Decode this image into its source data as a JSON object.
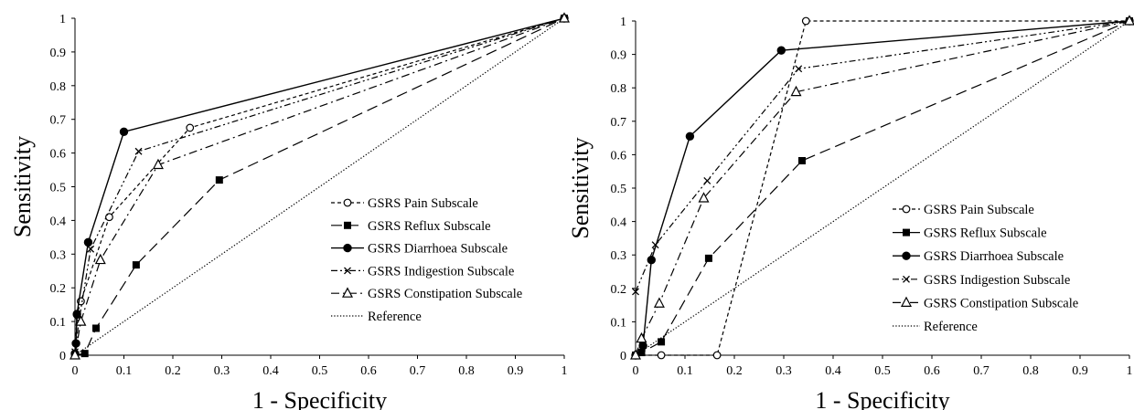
{
  "chart_data": [
    {
      "type": "line",
      "xlabel": "1 - Specificity",
      "ylabel": "Sensitivity",
      "xlim": [
        0,
        1
      ],
      "ylim": [
        0,
        1
      ],
      "xticks": [
        "0",
        "0.1",
        "0.2",
        "0.3",
        "0.4",
        "0.5",
        "0.6",
        "0.7",
        "0.8",
        "0.9",
        "1"
      ],
      "yticks": [
        "0",
        "0.1",
        "0.2",
        "0.3",
        "0.4",
        "0.5",
        "0.6",
        "0.7",
        "0.8",
        "0.9",
        "1"
      ],
      "grid": false,
      "legend_position": "bottom-right",
      "series": [
        {
          "name": "GSRS Pain Subscale",
          "style": "short-dash",
          "marker": "open-circle",
          "color": "#000000",
          "points": [
            [
              0,
              0
            ],
            [
              0.004,
              0.12
            ],
            [
              0.012,
              0.16
            ],
            [
              0.07,
              0.41
            ],
            [
              0.235,
              0.675
            ],
            [
              1,
              1
            ]
          ]
        },
        {
          "name": "GSRS Reflux Subscale",
          "style": "long-dash",
          "marker": "filled-square",
          "color": "#000000",
          "points": [
            [
              0,
              0
            ],
            [
              0.02,
              0.005
            ],
            [
              0.043,
              0.08
            ],
            [
              0.125,
              0.268
            ],
            [
              0.295,
              0.52
            ],
            [
              1,
              1
            ]
          ]
        },
        {
          "name": "GSRS Diarrhoea Subscale",
          "style": "solid",
          "marker": "filled-circle",
          "color": "#000000",
          "points": [
            [
              0,
              0.005
            ],
            [
              0.002,
              0.035
            ],
            [
              0.004,
              0.122
            ],
            [
              0.027,
              0.335
            ],
            [
              0.1,
              0.663
            ],
            [
              1,
              1
            ]
          ]
        },
        {
          "name": "GSRS Indigestion Subscale",
          "style": "dash-dot-dot",
          "marker": "x",
          "color": "#000000",
          "points": [
            [
              0,
              0.01
            ],
            [
              0.008,
              0.1
            ],
            [
              0.032,
              0.315
            ],
            [
              0.13,
              0.605
            ],
            [
              1,
              1
            ]
          ]
        },
        {
          "name": "GSRS Constipation Subscale",
          "style": "dash-dot",
          "marker": "open-triangle",
          "color": "#000000",
          "points": [
            [
              0,
              0
            ],
            [
              0.012,
              0.1
            ],
            [
              0.052,
              0.283
            ],
            [
              0.17,
              0.565
            ],
            [
              1,
              1
            ]
          ]
        },
        {
          "name": "Reference",
          "style": "dotted",
          "marker": "none",
          "color": "#000000",
          "points": [
            [
              0,
              0
            ],
            [
              1,
              1
            ]
          ]
        }
      ]
    },
    {
      "type": "line",
      "xlabel": "1 - Specificity",
      "ylabel": "Sensitivity",
      "xlim": [
        0,
        1
      ],
      "ylim": [
        0,
        1
      ],
      "xticks": [
        "0",
        "0.1",
        "0.2",
        "0.3",
        "0.4",
        "0.5",
        "0.6",
        "0.7",
        "0.8",
        "0.9",
        "1"
      ],
      "yticks": [
        "0",
        "0.1",
        "0.2",
        "0.3",
        "0.4",
        "0.5",
        "0.6",
        "0.7",
        "0.8",
        "0.9",
        "1"
      ],
      "grid": false,
      "legend_position": "bottom-right",
      "series": [
        {
          "name": "GSRS Pain Subscale",
          "style": "short-dash",
          "marker": "open-circle",
          "color": "#000000",
          "points": [
            [
              0,
              0
            ],
            [
              0.052,
              0
            ],
            [
              0.165,
              0
            ],
            [
              0.345,
              1
            ],
            [
              1,
              1
            ]
          ]
        },
        {
          "name": "GSRS Reflux Subscale",
          "style": "long-dash",
          "marker": "filled-square",
          "color": "#000000",
          "points": [
            [
              0,
              0
            ],
            [
              0.012,
              0.008
            ],
            [
              0.052,
              0.04
            ],
            [
              0.148,
              0.29
            ],
            [
              0.337,
              0.582
            ],
            [
              1,
              1
            ]
          ]
        },
        {
          "name": "GSRS Diarrhoea Subscale",
          "style": "solid",
          "marker": "filled-circle",
          "color": "#000000",
          "points": [
            [
              0,
              0
            ],
            [
              0.015,
              0.028
            ],
            [
              0.032,
              0.285
            ],
            [
              0.11,
              0.655
            ],
            [
              0.295,
              0.912
            ],
            [
              1,
              1
            ]
          ]
        },
        {
          "name": "GSRS Indigestion Subscale",
          "style": "dash-dot-dot",
          "marker": "x",
          "color": "#000000",
          "points": [
            [
              0,
              0.19
            ],
            [
              0.04,
              0.33
            ],
            [
              0.145,
              0.522
            ],
            [
              0.33,
              0.857
            ],
            [
              1,
              1
            ]
          ]
        },
        {
          "name": "GSRS Constipation Subscale",
          "style": "dash-dot",
          "marker": "open-triangle",
          "color": "#000000",
          "points": [
            [
              0,
              0
            ],
            [
              0.012,
              0.05
            ],
            [
              0.048,
              0.155
            ],
            [
              0.138,
              0.47
            ],
            [
              0.325,
              0.788
            ],
            [
              1,
              1
            ]
          ]
        },
        {
          "name": "Reference",
          "style": "dotted",
          "marker": "none",
          "color": "#000000",
          "points": [
            [
              0,
              0
            ],
            [
              1,
              1
            ]
          ]
        }
      ]
    }
  ]
}
